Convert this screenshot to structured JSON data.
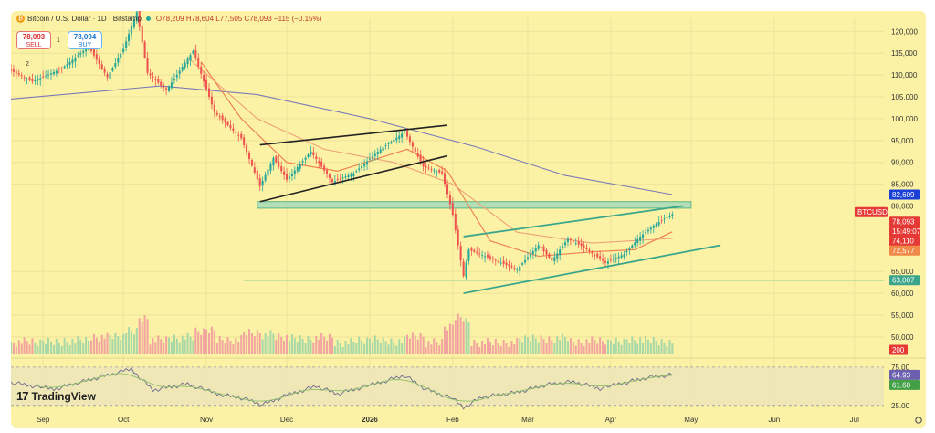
{
  "header": {
    "symbol_text": "Bitcoin / U.S. Dollar · 1D · Bitstamp",
    "ohlc_text": "O78,209 H78,604 L77,505 C78,093 −115 (−0.15%)"
  },
  "trade": {
    "sell_price": "78,093",
    "sell_label": "SELL",
    "buy_price": "78,094",
    "buy_label": "BUY",
    "qty": "1",
    "pane_num": "2"
  },
  "logo_text": "TradingView",
  "icons": {
    "bitcoin": "bitcoin-icon",
    "logo": "tradingview-logo-icon",
    "settings": "gear-icon"
  },
  "colors": {
    "background": "#fbf2a5",
    "candle_up": "#26a69a",
    "candle_down": "#ef5350",
    "trendline": "#222222",
    "channel": "#3aa58a",
    "zone_fill": "#a6dcb8",
    "ma_short": "#f07b4a",
    "ma_mid": "#f0a078",
    "ma_long": "#7b7bb8",
    "rsi": "#6b6b8f"
  },
  "chart_data": {
    "type": "candlestick",
    "price_axis": {
      "ticks": [
        120000,
        115000,
        110000,
        105000,
        100000,
        95000,
        90000,
        85000,
        80000,
        65000,
        60000,
        55000,
        50000
      ],
      "tick_labels": [
        "120,000",
        "115,000",
        "110,000",
        "105,000",
        "100,000",
        "95,000",
        "90,000",
        "85,000",
        "80,000",
        "65,000",
        "60,000",
        "55,000",
        "50,000"
      ],
      "range": [
        46000,
        123000
      ]
    },
    "time_axis": {
      "labels": [
        "Sep",
        "Oct",
        "Nov",
        "Dec",
        "2026",
        "Feb",
        "Mar",
        "Apr",
        "May",
        "Jun",
        "Jul"
      ],
      "label_dates": [
        "2025-09-01",
        "2025-10-01",
        "2025-11-01",
        "2025-12-01",
        "2026-01-01",
        "2026-02-01",
        "2026-03-01",
        "2026-04-01",
        "2026-05-01",
        "2026-06-01",
        "2026-07-01"
      ],
      "range_dates": [
        "2025-08-20",
        "2026-07-12"
      ]
    },
    "price_path": [
      [
        "2025-08-20",
        111000
      ],
      [
        "2025-08-28",
        108500
      ],
      [
        "2025-09-08",
        111500
      ],
      [
        "2025-09-18",
        116500
      ],
      [
        "2025-09-25",
        109500
      ],
      [
        "2025-10-01",
        116000
      ],
      [
        "2025-10-06",
        124500
      ],
      [
        "2025-10-10",
        110500
      ],
      [
        "2025-10-17",
        106500
      ],
      [
        "2025-10-27",
        115500
      ],
      [
        "2025-11-04",
        101500
      ],
      [
        "2025-11-14",
        95500
      ],
      [
        "2025-11-21",
        84500
      ],
      [
        "2025-11-26",
        91000
      ],
      [
        "2025-12-01",
        86000
      ],
      [
        "2025-12-10",
        92500
      ],
      [
        "2025-12-18",
        85500
      ],
      [
        "2025-12-26",
        87500
      ],
      [
        "2026-01-05",
        93000
      ],
      [
        "2026-01-14",
        97000
      ],
      [
        "2026-01-21",
        89000
      ],
      [
        "2026-01-28",
        87500
      ],
      [
        "2026-02-01",
        78000
      ],
      [
        "2026-02-05",
        64000
      ],
      [
        "2026-02-07",
        70000
      ],
      [
        "2026-02-15",
        68000
      ],
      [
        "2026-02-25",
        65500
      ],
      [
        "2026-03-05",
        71000
      ],
      [
        "2026-03-10",
        67500
      ],
      [
        "2026-03-16",
        72500
      ],
      [
        "2026-03-22",
        70500
      ],
      [
        "2026-03-30",
        67000
      ],
      [
        "2026-04-06",
        69000
      ],
      [
        "2026-04-12",
        73000
      ],
      [
        "2026-04-18",
        76000
      ],
      [
        "2026-04-24",
        78093
      ]
    ],
    "moving_averages": {
      "short": [
        [
          "2025-10-30",
          113000
        ],
        [
          "2025-11-14",
          100000
        ],
        [
          "2025-12-01",
          90000
        ],
        [
          "2025-12-20",
          88000
        ],
        [
          "2026-01-15",
          93000
        ],
        [
          "2026-01-30",
          88000
        ],
        [
          "2026-02-15",
          72000
        ],
        [
          "2026-03-05",
          68500
        ],
        [
          "2026-03-25",
          69500
        ],
        [
          "2026-04-10",
          70000
        ],
        [
          "2026-04-24",
          74110
        ]
      ],
      "mid": [
        [
          "2025-10-25",
          114000
        ],
        [
          "2025-11-20",
          100000
        ],
        [
          "2025-12-15",
          93000
        ],
        [
          "2026-01-10",
          90000
        ],
        [
          "2026-02-01",
          85000
        ],
        [
          "2026-02-25",
          74000
        ],
        [
          "2026-03-25",
          71500
        ],
        [
          "2026-04-24",
          72577
        ]
      ],
      "long": [
        [
          "2025-08-20",
          104500
        ],
        [
          "2025-10-15",
          107500
        ],
        [
          "2025-11-20",
          105500
        ],
        [
          "2026-01-01",
          100000
        ],
        [
          "2026-02-10",
          93500
        ],
        [
          "2026-03-15",
          87000
        ],
        [
          "2026-04-24",
          82609
        ]
      ]
    },
    "trendlines": [
      {
        "name": "wedge-upper",
        "points": [
          [
            "2025-11-21",
            94000
          ],
          [
            "2026-01-30",
            98500
          ]
        ]
      },
      {
        "name": "wedge-lower",
        "points": [
          [
            "2025-11-21",
            81000
          ],
          [
            "2026-01-30",
            91500
          ]
        ]
      },
      {
        "name": "channel-upper",
        "points": [
          [
            "2026-02-05",
            73000
          ],
          [
            "2026-04-28",
            80000
          ]
        ]
      },
      {
        "name": "channel-lower",
        "points": [
          [
            "2026-02-05",
            60000
          ],
          [
            "2026-05-12",
            71000
          ]
        ]
      }
    ],
    "zone": {
      "from_date": "2025-11-20",
      "to_date": "2026-05-01",
      "low": 79500,
      "high": 81000
    },
    "support_line": {
      "from_date": "2025-11-15",
      "price": 63007
    },
    "price_labels": [
      {
        "name": "ma-long",
        "text": "82,609",
        "price": 82609,
        "color": "#1a3fd6"
      },
      {
        "name": "symbol",
        "text": "BTCUSD",
        "price": 78600,
        "color": "#e53935"
      },
      {
        "name": "last",
        "text": "78,093",
        "price": 78093,
        "color": "#e53935"
      },
      {
        "name": "countdown",
        "text": "15:49:07",
        "price": 76400,
        "color": "#e53935"
      },
      {
        "name": "ma-short",
        "text": "74,110",
        "price": 74110,
        "color": "#e53935"
      },
      {
        "name": "ma-mid",
        "text": "72,577",
        "price": 72577,
        "color": "#f08a4b"
      },
      {
        "name": "support",
        "text": "63,007",
        "price": 63007,
        "color": "#3aa58a"
      }
    ],
    "volume": {
      "label": "200",
      "label_color": "#e53935"
    },
    "rsi": {
      "tick_labels": [
        "75.00",
        "25.00"
      ],
      "tick_values": [
        75,
        25
      ],
      "range": [
        20,
        82
      ],
      "labels": [
        {
          "name": "rsi-value",
          "text": "64.93",
          "color": "#6d5fb0"
        },
        {
          "name": "rsi-ma",
          "text": "61.60",
          "color": "#43a047"
        }
      ],
      "path": [
        [
          "2025-08-20",
          55
        ],
        [
          "2025-09-05",
          46
        ],
        [
          "2025-09-20",
          60
        ],
        [
          "2025-10-04",
          72
        ],
        [
          "2025-10-12",
          45
        ],
        [
          "2025-10-25",
          53
        ],
        [
          "2025-11-05",
          40
        ],
        [
          "2025-11-15",
          34
        ],
        [
          "2025-11-22",
          26
        ],
        [
          "2025-12-01",
          38
        ],
        [
          "2025-12-12",
          50
        ],
        [
          "2025-12-20",
          40
        ],
        [
          "2026-01-05",
          55
        ],
        [
          "2026-01-14",
          64
        ],
        [
          "2026-01-22",
          46
        ],
        [
          "2026-02-01",
          34
        ],
        [
          "2026-02-05",
          22
        ],
        [
          "2026-02-12",
          36
        ],
        [
          "2026-02-25",
          42
        ],
        [
          "2026-03-08",
          52
        ],
        [
          "2026-03-18",
          56
        ],
        [
          "2026-03-28",
          47
        ],
        [
          "2026-04-08",
          56
        ],
        [
          "2026-04-16",
          62
        ],
        [
          "2026-04-24",
          64.93
        ]
      ]
    }
  }
}
